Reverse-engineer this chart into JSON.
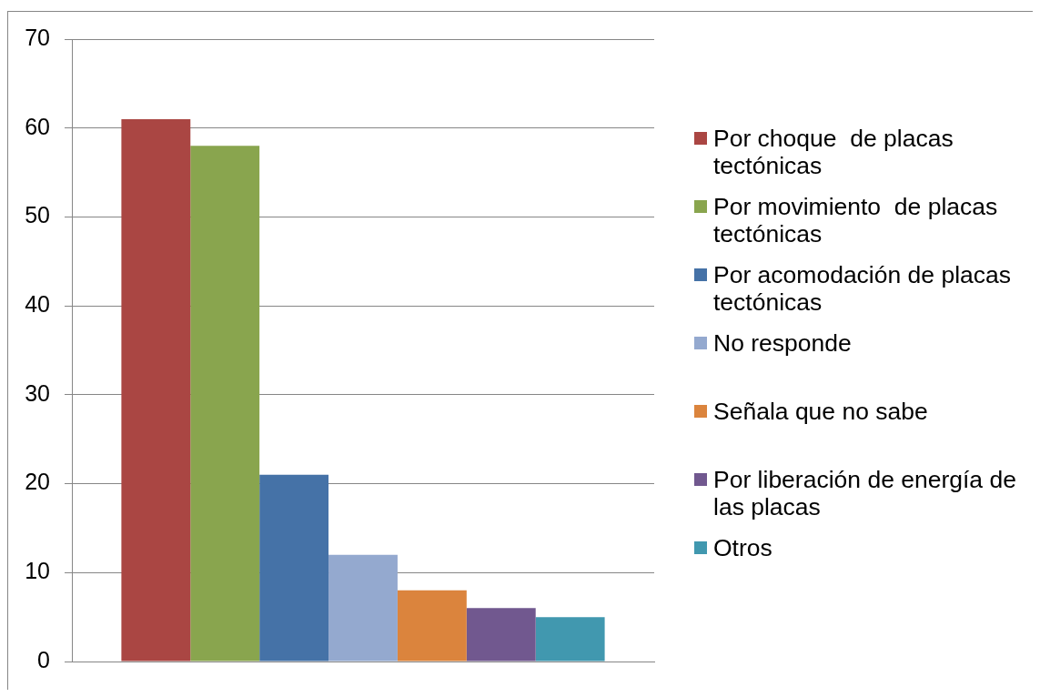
{
  "chart_data": {
    "type": "bar",
    "categories": [
      null
    ],
    "series": [
      {
        "name": "Por choque  de placas tectónicas",
        "color": "#aa4643",
        "values": [
          61
        ]
      },
      {
        "name": "Por movimiento  de placas tectónicas",
        "color": "#89a54e",
        "values": [
          58
        ]
      },
      {
        "name": "Por acomodación de placas tectónicas",
        "color": "#4572a7",
        "values": [
          21
        ]
      },
      {
        "name": "No responde",
        "color": "#94a9cf",
        "values": [
          12
        ]
      },
      {
        "name": "Señala que no sabe",
        "color": "#db843d",
        "values": [
          8
        ]
      },
      {
        "name": "Por liberación de energía de las placas",
        "color": "#71588f",
        "values": [
          6
        ]
      },
      {
        "name": "Otros",
        "color": "#4198af",
        "values": [
          5
        ]
      }
    ],
    "ylim": [
      0,
      70
    ],
    "yticks": [
      0,
      10,
      20,
      30,
      40,
      50,
      60,
      70
    ],
    "grid": "y",
    "legend": "right"
  }
}
